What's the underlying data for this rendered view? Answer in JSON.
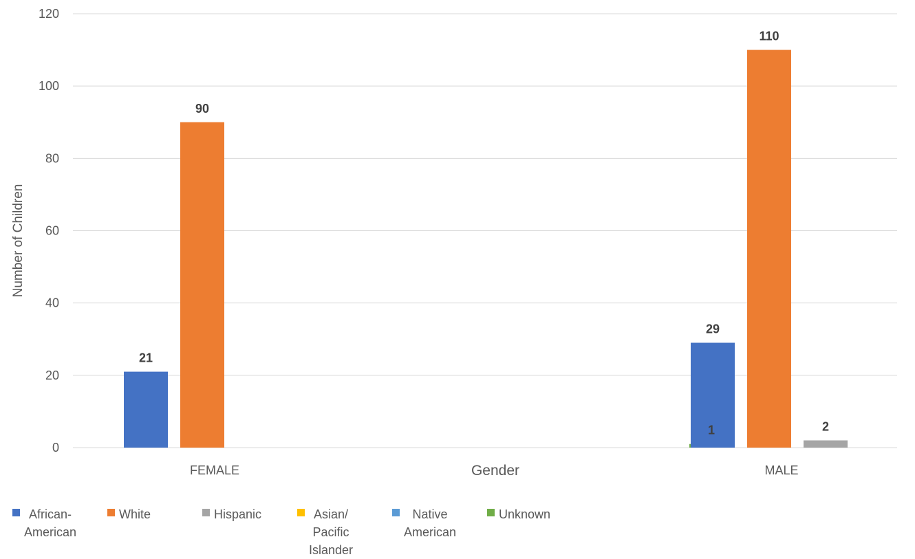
{
  "chart_data": {
    "type": "bar",
    "title": "",
    "xlabel": "Gender",
    "ylabel": "Number of Children",
    "ylim": [
      0,
      120
    ],
    "yticks": [
      0,
      20,
      40,
      60,
      80,
      100,
      120
    ],
    "grid": true,
    "legend_position": "bottom-left",
    "categories": [
      "FEMALE",
      "",
      "MALE"
    ],
    "series": [
      {
        "name": "African-American",
        "color": "#4472C4",
        "values": [
          21,
          null,
          29
        ]
      },
      {
        "name": "White",
        "color": "#ED7D31",
        "values": [
          90,
          null,
          110
        ]
      },
      {
        "name": "Hispanic",
        "color": "#A5A5A5",
        "values": [
          null,
          null,
          2
        ]
      },
      {
        "name": "Asian/ Pacific Islander",
        "color": "#FFC000",
        "values": [
          null,
          null,
          null
        ]
      },
      {
        "name": "Native American",
        "color": "#5B9BD5",
        "values": [
          null,
          null,
          null
        ]
      },
      {
        "name": "Unknown",
        "color": "#70AD47",
        "values": [
          null,
          1,
          null
        ]
      }
    ]
  },
  "legend": {
    "items": [
      {
        "label": "African-\nAmerican"
      },
      {
        "label": "White"
      },
      {
        "label": "Hispanic"
      },
      {
        "label": "Asian/\nPacific\nIslander"
      },
      {
        "label": "Native\nAmerican"
      },
      {
        "label": "Unknown"
      }
    ]
  }
}
